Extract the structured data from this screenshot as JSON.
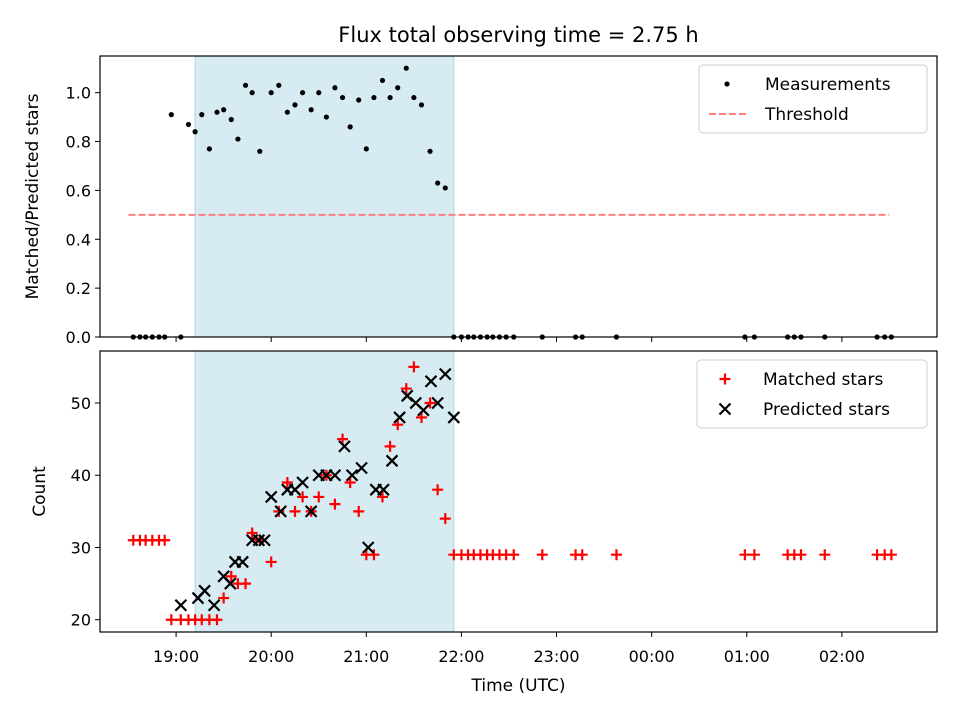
{
  "chart_data": [
    {
      "type": "scatter",
      "title": "Flux total observing time = 2.75 h",
      "xlabel": "",
      "ylabel": "Matched/Predicted stars",
      "ylim": [
        0,
        1.15
      ],
      "yticks": [
        "0.0",
        "0.2",
        "0.4",
        "0.6",
        "0.8",
        "1.0"
      ],
      "xlim": [
        18.2,
        27.0
      ],
      "shaded_interval": [
        19.2,
        21.92
      ],
      "shade_color": "#add8e6",
      "legend_position": "top-right",
      "series": [
        {
          "name": "Measurements",
          "marker": "dot",
          "color": "#000000",
          "x": [
            18.55,
            18.62,
            18.68,
            18.75,
            18.82,
            18.88,
            18.95,
            19.05,
            19.13,
            19.2,
            19.27,
            19.35,
            19.43,
            19.5,
            19.58,
            19.65,
            19.73,
            19.8,
            19.88,
            20.0,
            20.08,
            20.17,
            20.25,
            20.33,
            20.42,
            20.5,
            20.58,
            20.67,
            20.75,
            20.83,
            20.92,
            21.0,
            21.08,
            21.17,
            21.25,
            21.33,
            21.42,
            21.5,
            21.58,
            21.67,
            21.75,
            21.83,
            21.92,
            22.0,
            22.07,
            22.13,
            22.2,
            22.27,
            22.33,
            22.4,
            22.47,
            22.55,
            22.85,
            23.2,
            23.27,
            23.63,
            24.98,
            25.08,
            25.43,
            25.5,
            25.57,
            25.82,
            26.37,
            26.45,
            26.52
          ],
          "y": [
            0,
            0,
            0,
            0,
            0,
            0,
            0.91,
            0,
            0.87,
            0.84,
            0.91,
            0.77,
            0.92,
            0.93,
            0.89,
            0.81,
            1.03,
            1.0,
            0.76,
            1.0,
            1.03,
            0.92,
            0.95,
            1.0,
            0.93,
            1.0,
            0.9,
            1.02,
            0.98,
            0.86,
            0.97,
            0.77,
            0.98,
            1.05,
            0.98,
            1.02,
            1.1,
            0.98,
            0.95,
            0.76,
            0.63,
            0.61,
            0,
            0,
            0,
            0,
            0,
            0,
            0,
            0,
            0,
            0,
            0,
            0,
            0,
            0,
            0,
            0,
            0,
            0,
            0,
            0,
            0,
            0,
            0
          ]
        },
        {
          "name": "Threshold",
          "style": "dashed",
          "color": "#ff7f7f",
          "x": [
            18.5,
            26.5
          ],
          "y": [
            0.5,
            0.5
          ]
        }
      ]
    },
    {
      "type": "scatter",
      "title": "",
      "xlabel": "Time (UTC)",
      "ylabel": "Count",
      "ylim": [
        18.3,
        57.2
      ],
      "yticks": [
        "20",
        "30",
        "40",
        "50"
      ],
      "xlim": [
        18.2,
        27.0
      ],
      "xticks": [
        "19:00",
        "20:00",
        "21:00",
        "22:00",
        "23:00",
        "00:00",
        "01:00",
        "02:00"
      ],
      "shaded_interval": [
        19.2,
        21.92
      ],
      "shade_color": "#add8e6",
      "legend_position": "top-right",
      "series": [
        {
          "name": "Matched stars",
          "marker": "plus",
          "color": "#ff0000",
          "x": [
            18.55,
            18.62,
            18.68,
            18.75,
            18.82,
            18.88,
            18.95,
            19.05,
            19.13,
            19.2,
            19.27,
            19.35,
            19.43,
            19.5,
            19.58,
            19.65,
            19.73,
            19.8,
            19.88,
            20.0,
            20.08,
            20.17,
            20.25,
            20.33,
            20.42,
            20.5,
            20.58,
            20.67,
            20.75,
            20.83,
            20.92,
            21.0,
            21.08,
            21.17,
            21.25,
            21.33,
            21.42,
            21.5,
            21.58,
            21.67,
            21.75,
            21.83,
            21.92,
            22.0,
            22.07,
            22.13,
            22.2,
            22.27,
            22.33,
            22.4,
            22.47,
            22.55,
            22.85,
            23.2,
            23.27,
            23.63,
            24.98,
            25.08,
            25.43,
            25.5,
            25.57,
            25.82,
            26.37,
            26.45,
            26.52
          ],
          "y": [
            31,
            31,
            31,
            31,
            31,
            31,
            20,
            20,
            20,
            20,
            20,
            20,
            20,
            23,
            26,
            25,
            25,
            32,
            31,
            28,
            35,
            39,
            35,
            37,
            35,
            37,
            40,
            36,
            45,
            39,
            35,
            29,
            29,
            37,
            44,
            47,
            52,
            55,
            48,
            50,
            38,
            34,
            29,
            29,
            29,
            29,
            29,
            29,
            29,
            29,
            29,
            29,
            29,
            29,
            29,
            29,
            29,
            29,
            29,
            29,
            29,
            29,
            29,
            29,
            29
          ]
        },
        {
          "name": "Predicted stars",
          "marker": "x",
          "color": "#000000",
          "x": [
            19.05,
            19.23,
            19.3,
            19.4,
            19.5,
            19.57,
            19.62,
            19.7,
            19.8,
            19.87,
            19.93,
            20.0,
            20.1,
            20.17,
            20.25,
            20.33,
            20.42,
            20.5,
            20.58,
            20.67,
            20.77,
            20.85,
            20.95,
            21.02,
            21.1,
            21.18,
            21.27,
            21.35,
            21.43,
            21.52,
            21.6,
            21.68,
            21.75,
            21.83,
            21.92
          ],
          "y": [
            22,
            23,
            24,
            22,
            26,
            25,
            28,
            28,
            31,
            31,
            31,
            37,
            35,
            38,
            38,
            39,
            35,
            40,
            40,
            40,
            44,
            40,
            41,
            30,
            38,
            38,
            42,
            48,
            51,
            50,
            49,
            53,
            50,
            54,
            48
          ]
        }
      ]
    }
  ]
}
